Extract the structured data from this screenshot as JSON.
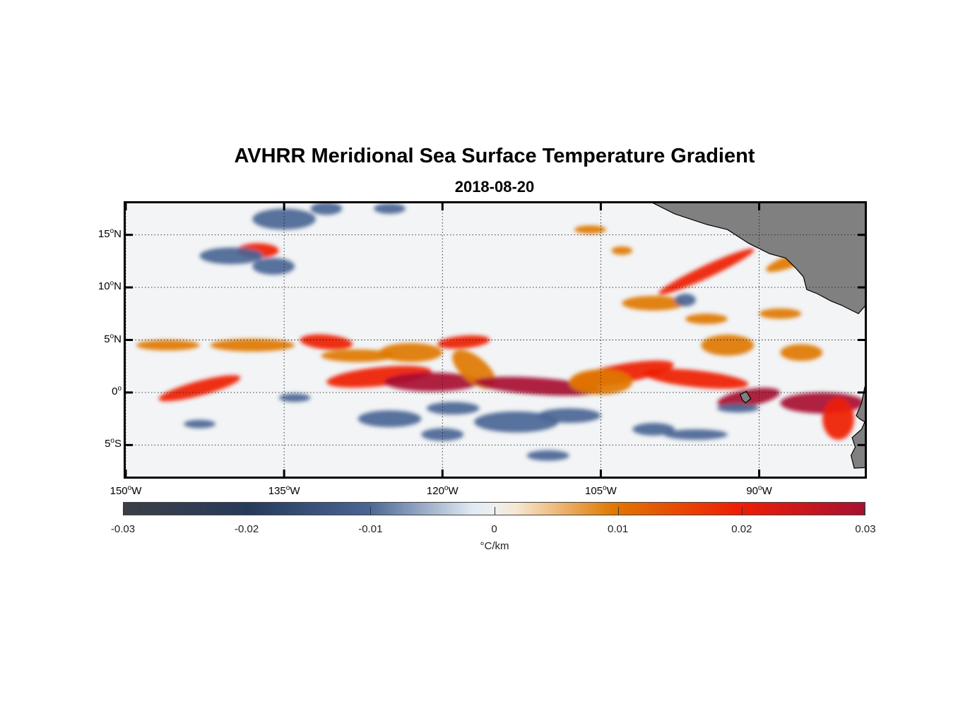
{
  "title": "AVHRR Meridional Sea Surface Temperature Gradient",
  "subtitle": "2018-08-20",
  "map": {
    "lon_range_deg": [
      -150,
      -80
    ],
    "lat_range_deg": [
      -8,
      18
    ],
    "lat_ticks": [
      {
        "value": 15,
        "num": "15",
        "hemi": "N"
      },
      {
        "value": 10,
        "num": "10",
        "hemi": "N"
      },
      {
        "value": 5,
        "num": "5",
        "hemi": "N"
      },
      {
        "value": 0,
        "num": "0",
        "hemi": ""
      },
      {
        "value": -5,
        "num": "5",
        "hemi": "S"
      }
    ],
    "lon_ticks": [
      {
        "value": -150,
        "num": "150",
        "hemi": "W"
      },
      {
        "value": -135,
        "num": "135",
        "hemi": "W"
      },
      {
        "value": -120,
        "num": "120",
        "hemi": "W"
      },
      {
        "value": -105,
        "num": "105",
        "hemi": "W"
      },
      {
        "value": -90,
        "num": "90",
        "hemi": "W"
      }
    ],
    "degree_symbol": "o",
    "land_color": "#808080"
  },
  "colorbar": {
    "ticks": [
      "-0.03",
      "-0.02",
      "-0.01",
      "0",
      "0.01",
      "0.02",
      "0.03"
    ],
    "unit_label": "°C/km",
    "colors": [
      "#3b3f46",
      "#263a5c",
      "#4a6594",
      "#dfe9f3",
      "#f6e7d2",
      "#e07800",
      "#ee1d05",
      "#a81032"
    ]
  }
}
